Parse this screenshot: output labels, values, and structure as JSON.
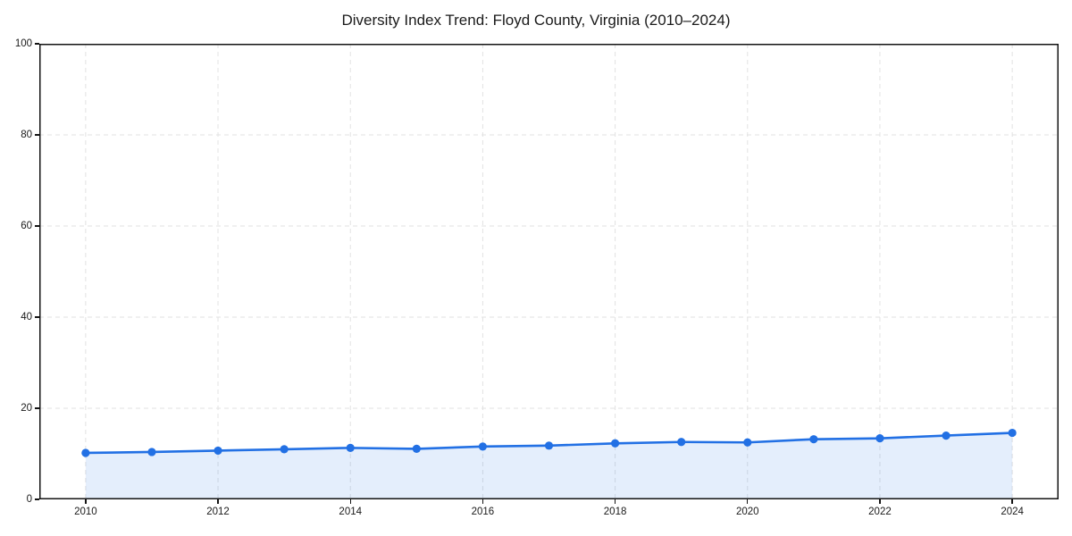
{
  "figure": {
    "title": "Diversity Index Trend: Floyd County, Virginia (2010–2024)"
  },
  "chart_data": {
    "type": "area",
    "title": "Diversity Index Trend: Floyd County, Virginia (2010–2024)",
    "x": [
      2010,
      2011,
      2012,
      2013,
      2014,
      2015,
      2016,
      2017,
      2018,
      2019,
      2020,
      2021,
      2022,
      2023,
      2024
    ],
    "series": [
      {
        "name": "Diversity Index",
        "values": [
          10.2,
          10.4,
          10.7,
          11.0,
          11.3,
          11.1,
          11.6,
          11.8,
          12.3,
          12.6,
          12.5,
          13.2,
          13.4,
          14.0,
          14.6
        ]
      }
    ],
    "xlabel": "",
    "ylabel": "",
    "xlim": [
      2009.3,
      2024.7
    ],
    "ylim": [
      0,
      100
    ],
    "x_ticks": [
      2010,
      2012,
      2014,
      2016,
      2018,
      2020,
      2022,
      2024
    ],
    "y_ticks": [
      0,
      20,
      40,
      60,
      80,
      100
    ],
    "grid": "dashed",
    "legend": "none",
    "colors": {
      "line": "#2270e4",
      "fill_opacity": "0.12",
      "grid": "#e2e2e2",
      "spine": "#141414",
      "text": "#1a1a1a",
      "background": "#ffffff"
    }
  }
}
